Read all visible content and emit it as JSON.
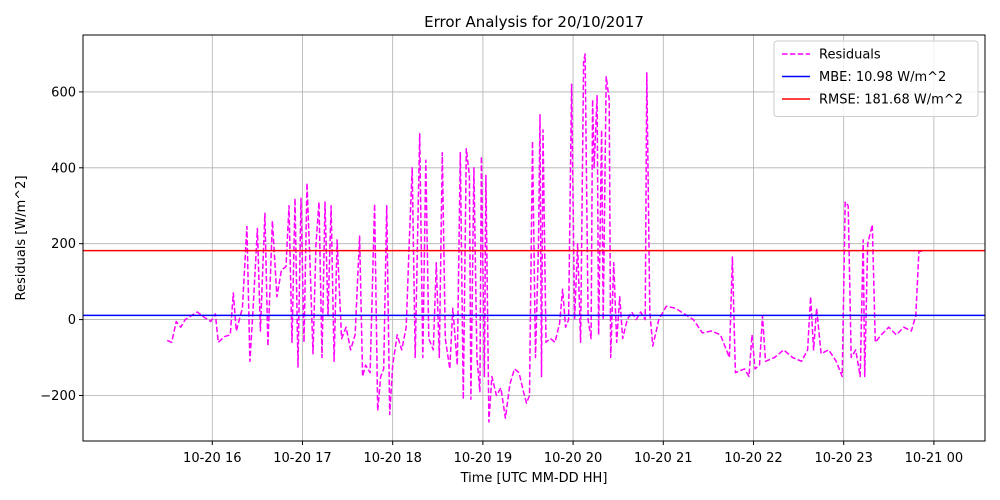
{
  "chart_data": {
    "type": "line",
    "title": "Error Analysis for 20/10/2017",
    "xlabel": "Time [UTC MM-DD HH]",
    "ylabel": "Residuals [W/m^2]",
    "xlim": [
      "2017-10-20 14:34",
      "2017-10-21 00:34"
    ],
    "ylim": [
      -320,
      750
    ],
    "x_ticks": [
      {
        "value": "2017-10-20 16:00",
        "label": "10-20 16"
      },
      {
        "value": "2017-10-20 17:00",
        "label": "10-20 17"
      },
      {
        "value": "2017-10-20 18:00",
        "label": "10-20 18"
      },
      {
        "value": "2017-10-20 19:00",
        "label": "10-20 19"
      },
      {
        "value": "2017-10-20 20:00",
        "label": "10-20 20"
      },
      {
        "value": "2017-10-20 21:00",
        "label": "10-20 21"
      },
      {
        "value": "2017-10-20 22:00",
        "label": "10-20 22"
      },
      {
        "value": "2017-10-20 23:00",
        "label": "10-20 23"
      },
      {
        "value": "2017-10-21 00:00",
        "label": "10-21 00"
      }
    ],
    "y_ticks": [
      {
        "value": -200,
        "label": "−200"
      },
      {
        "value": 0,
        "label": "0"
      },
      {
        "value": 200,
        "label": "200"
      },
      {
        "value": 400,
        "label": "400"
      },
      {
        "value": 600,
        "label": "600"
      }
    ],
    "grid": true,
    "legend_position": "top-right",
    "series": [
      {
        "name": "Residuals",
        "style": "dashed",
        "color": "#ff00ff",
        "points": [
          [
            "2017-10-20 15:30",
            -55
          ],
          [
            "2017-10-20 15:33",
            -60
          ],
          [
            "2017-10-20 15:36",
            -5
          ],
          [
            "2017-10-20 15:39",
            -20
          ],
          [
            "2017-10-20 15:42",
            0
          ],
          [
            "2017-10-20 15:46",
            10
          ],
          [
            "2017-10-20 15:50",
            20
          ],
          [
            "2017-10-20 15:55",
            5
          ],
          [
            "2017-10-20 15:59",
            -5
          ],
          [
            "2017-10-20 16:02",
            15
          ],
          [
            "2017-10-20 16:04",
            -60
          ],
          [
            "2017-10-20 16:08",
            -45
          ],
          [
            "2017-10-20 16:12",
            -40
          ],
          [
            "2017-10-20 16:14",
            70
          ],
          [
            "2017-10-20 16:16",
            -30
          ],
          [
            "2017-10-20 16:20",
            30
          ],
          [
            "2017-10-20 16:23",
            245
          ],
          [
            "2017-10-20 16:25",
            -110
          ],
          [
            "2017-10-20 16:27",
            20
          ],
          [
            "2017-10-20 16:30",
            240
          ],
          [
            "2017-10-20 16:32",
            -30
          ],
          [
            "2017-10-20 16:35",
            280
          ],
          [
            "2017-10-20 16:37",
            -70
          ],
          [
            "2017-10-20 16:40",
            260
          ],
          [
            "2017-10-20 16:43",
            60
          ],
          [
            "2017-10-20 16:46",
            130
          ],
          [
            "2017-10-20 16:49",
            140
          ],
          [
            "2017-10-20 16:51",
            300
          ],
          [
            "2017-10-20 16:53",
            -60
          ],
          [
            "2017-10-20 16:55",
            320
          ],
          [
            "2017-10-20 16:57",
            -125
          ],
          [
            "2017-10-20 16:59",
            320
          ],
          [
            "2017-10-20 17:01",
            -60
          ],
          [
            "2017-10-20 17:03",
            360
          ],
          [
            "2017-10-20 17:05",
            150
          ],
          [
            "2017-10-20 17:07",
            -90
          ],
          [
            "2017-10-20 17:09",
            200
          ],
          [
            "2017-10-20 17:11",
            310
          ],
          [
            "2017-10-20 17:13",
            -100
          ],
          [
            "2017-10-20 17:15",
            310
          ],
          [
            "2017-10-20 17:17",
            10
          ],
          [
            "2017-10-20 17:19",
            300
          ],
          [
            "2017-10-20 17:21",
            -110
          ],
          [
            "2017-10-20 17:23",
            210
          ],
          [
            "2017-10-20 17:26",
            -50
          ],
          [
            "2017-10-20 17:29",
            -20
          ],
          [
            "2017-10-20 17:32",
            -80
          ],
          [
            "2017-10-20 17:35",
            -40
          ],
          [
            "2017-10-20 17:38",
            220
          ],
          [
            "2017-10-20 17:40",
            -150
          ],
          [
            "2017-10-20 17:42",
            -120
          ],
          [
            "2017-10-20 17:45",
            -140
          ],
          [
            "2017-10-20 17:48",
            305
          ],
          [
            "2017-10-20 17:50",
            -240
          ],
          [
            "2017-10-20 17:52",
            -150
          ],
          [
            "2017-10-20 17:54",
            -130
          ],
          [
            "2017-10-20 17:56",
            300
          ],
          [
            "2017-10-20 17:58",
            -250
          ],
          [
            "2017-10-20 18:00",
            -120
          ],
          [
            "2017-10-20 18:03",
            -40
          ],
          [
            "2017-10-20 18:06",
            -80
          ],
          [
            "2017-10-20 18:09",
            -20
          ],
          [
            "2017-10-20 18:11",
            200
          ],
          [
            "2017-10-20 18:13",
            400
          ],
          [
            "2017-10-20 18:15",
            -100
          ],
          [
            "2017-10-20 18:17",
            300
          ],
          [
            "2017-10-20 18:18",
            490
          ],
          [
            "2017-10-20 18:20",
            -100
          ],
          [
            "2017-10-20 18:22",
            420
          ],
          [
            "2017-10-20 18:24",
            -50
          ],
          [
            "2017-10-20 18:27",
            -80
          ],
          [
            "2017-10-20 18:29",
            150
          ],
          [
            "2017-10-20 18:31",
            -100
          ],
          [
            "2017-10-20 18:33",
            440
          ],
          [
            "2017-10-20 18:35",
            -50
          ],
          [
            "2017-10-20 18:38",
            -130
          ],
          [
            "2017-10-20 18:40",
            30
          ],
          [
            "2017-10-20 18:43",
            -120
          ],
          [
            "2017-10-20 18:45",
            440
          ],
          [
            "2017-10-20 18:47",
            -210
          ],
          [
            "2017-10-20 18:49",
            450
          ],
          [
            "2017-10-20 18:51",
            380
          ],
          [
            "2017-10-20 18:52",
            -210
          ],
          [
            "2017-10-20 18:54",
            400
          ],
          [
            "2017-10-20 18:56",
            -100
          ],
          [
            "2017-10-20 18:58",
            -190
          ],
          [
            "2017-10-20 18:59",
            430
          ],
          [
            "2017-10-20 19:01",
            -150
          ],
          [
            "2017-10-20 19:02",
            380
          ],
          [
            "2017-10-20 19:04",
            -270
          ],
          [
            "2017-10-20 19:06",
            -150
          ],
          [
            "2017-10-20 19:09",
            -200
          ],
          [
            "2017-10-20 19:12",
            -180
          ],
          [
            "2017-10-20 19:15",
            -260
          ],
          [
            "2017-10-20 19:18",
            -170
          ],
          [
            "2017-10-20 19:21",
            -130
          ],
          [
            "2017-10-20 19:24",
            -140
          ],
          [
            "2017-10-20 19:27",
            -190
          ],
          [
            "2017-10-20 19:29",
            -220
          ],
          [
            "2017-10-20 19:31",
            -200
          ],
          [
            "2017-10-20 19:33",
            470
          ],
          [
            "2017-10-20 19:35",
            -100
          ],
          [
            "2017-10-20 19:37",
            200
          ],
          [
            "2017-10-20 19:38",
            540
          ],
          [
            "2017-10-20 19:39",
            -150
          ],
          [
            "2017-10-20 19:40",
            500
          ],
          [
            "2017-10-20 19:42",
            -60
          ],
          [
            "2017-10-20 19:45",
            -50
          ],
          [
            "2017-10-20 19:48",
            -60
          ],
          [
            "2017-10-20 19:51",
            -10
          ],
          [
            "2017-10-20 19:53",
            80
          ],
          [
            "2017-10-20 19:55",
            -20
          ],
          [
            "2017-10-20 19:57",
            0
          ],
          [
            "2017-10-20 19:59",
            620
          ],
          [
            "2017-10-20 20:01",
            0
          ],
          [
            "2017-10-20 20:03",
            200
          ],
          [
            "2017-10-20 20:05",
            -60
          ],
          [
            "2017-10-20 20:07",
            680
          ],
          [
            "2017-10-20 20:08",
            700
          ],
          [
            "2017-10-20 20:10",
            0
          ],
          [
            "2017-10-20 20:12",
            -50
          ],
          [
            "2017-10-20 20:13",
            580
          ],
          [
            "2017-10-20 20:14",
            400
          ],
          [
            "2017-10-20 20:16",
            590
          ],
          [
            "2017-10-20 20:17",
            -40
          ],
          [
            "2017-10-20 20:19",
            500
          ],
          [
            "2017-10-20 20:20",
            0
          ],
          [
            "2017-10-20 20:22",
            640
          ],
          [
            "2017-10-20 20:24",
            580
          ],
          [
            "2017-10-20 20:25",
            -100
          ],
          [
            "2017-10-20 20:27",
            150
          ],
          [
            "2017-10-20 20:29",
            -60
          ],
          [
            "2017-10-20 20:31",
            60
          ],
          [
            "2017-10-20 20:33",
            -50
          ],
          [
            "2017-10-20 20:36",
            0
          ],
          [
            "2017-10-20 20:39",
            20
          ],
          [
            "2017-10-20 20:42",
            0
          ],
          [
            "2017-10-20 20:45",
            20
          ],
          [
            "2017-10-20 20:48",
            0
          ],
          [
            "2017-10-20 20:49",
            650
          ],
          [
            "2017-10-20 20:51",
            20
          ],
          [
            "2017-10-20 20:53",
            -70
          ],
          [
            "2017-10-20 20:57",
            0
          ],
          [
            "2017-10-20 21:02",
            35
          ],
          [
            "2017-10-20 21:08",
            30
          ],
          [
            "2017-10-20 21:14",
            15
          ],
          [
            "2017-10-20 21:20",
            0
          ],
          [
            "2017-10-20 21:26",
            -35
          ],
          [
            "2017-10-20 21:32",
            -30
          ],
          [
            "2017-10-20 21:38",
            -40
          ],
          [
            "2017-10-20 21:44",
            -100
          ],
          [
            "2017-10-20 21:46",
            165
          ],
          [
            "2017-10-20 21:48",
            -140
          ],
          [
            "2017-10-20 21:54",
            -130
          ],
          [
            "2017-10-20 21:57",
            -150
          ],
          [
            "2017-10-20 21:59",
            -40
          ],
          [
            "2017-10-20 22:01",
            -130
          ],
          [
            "2017-10-20 22:04",
            -120
          ],
          [
            "2017-10-20 22:06",
            10
          ],
          [
            "2017-10-20 22:08",
            -110
          ],
          [
            "2017-10-20 22:14",
            -100
          ],
          [
            "2017-10-20 22:20",
            -80
          ],
          [
            "2017-10-20 22:26",
            -100
          ],
          [
            "2017-10-20 22:32",
            -110
          ],
          [
            "2017-10-20 22:36",
            -80
          ],
          [
            "2017-10-20 22:38",
            60
          ],
          [
            "2017-10-20 22:40",
            -80
          ],
          [
            "2017-10-20 22:42",
            30
          ],
          [
            "2017-10-20 22:45",
            -90
          ],
          [
            "2017-10-20 22:50",
            -80
          ],
          [
            "2017-10-20 22:55",
            -110
          ],
          [
            "2017-10-20 22:59",
            -150
          ],
          [
            "2017-10-20 23:01",
            310
          ],
          [
            "2017-10-20 23:03",
            300
          ],
          [
            "2017-10-20 23:05",
            -100
          ],
          [
            "2017-10-20 23:08",
            -80
          ],
          [
            "2017-10-20 23:11",
            -150
          ],
          [
            "2017-10-20 23:13",
            210
          ],
          [
            "2017-10-20 23:14",
            -150
          ],
          [
            "2017-10-20 23:16",
            200
          ],
          [
            "2017-10-20 23:19",
            250
          ],
          [
            "2017-10-20 23:21",
            -60
          ],
          [
            "2017-10-20 23:25",
            -40
          ],
          [
            "2017-10-20 23:30",
            -20
          ],
          [
            "2017-10-20 23:35",
            -40
          ],
          [
            "2017-10-20 23:40",
            -20
          ],
          [
            "2017-10-20 23:45",
            -30
          ],
          [
            "2017-10-20 23:48",
            10
          ],
          [
            "2017-10-20 23:50",
            180
          ],
          [
            "2017-10-20 23:52",
            180
          ]
        ]
      },
      {
        "name": "MBE: 10.98 W/m^2",
        "style": "solid",
        "color": "#0000ff",
        "constant": 10.98
      },
      {
        "name": "RMSE: 181.68 W/m^2",
        "style": "solid",
        "color": "#ff0000",
        "constant": 181.68
      }
    ]
  }
}
